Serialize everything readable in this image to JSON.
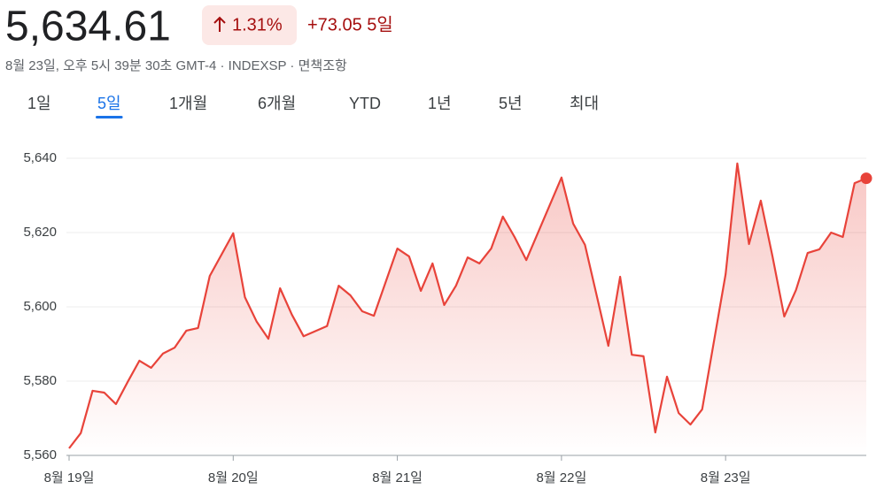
{
  "header": {
    "price": "5,634.61",
    "change_percent": "1.31%",
    "change": "+73.05 5일",
    "subtitle": "8월 23일, 오후 5시 39분 30초 GMT-4 · INDEXSP · 면책조항"
  },
  "tabs": [
    "1일",
    "5일",
    "1개월",
    "6개월",
    "YTD",
    "1년",
    "5년",
    "최대"
  ],
  "selected_tab": 1,
  "chart_data": {
    "type": "area",
    "color": "#e8433a",
    "grid": true,
    "x": [
      0,
      1,
      2,
      3,
      4,
      5,
      6,
      7,
      8,
      9,
      10,
      11,
      12,
      14,
      15,
      16,
      17,
      18,
      19,
      20,
      22,
      23,
      24,
      25,
      26,
      28,
      29,
      30,
      31,
      32,
      33,
      34,
      35,
      36,
      37,
      38,
      39,
      42,
      43,
      44,
      46,
      47,
      48,
      49,
      50,
      51,
      52,
      53,
      54,
      56,
      57,
      58,
      59,
      60,
      61,
      62,
      63,
      64,
      65,
      66,
      67,
      68
    ],
    "values": [
      5561.9,
      5566,
      5577.4,
      5576.9,
      5573.8,
      5579.8,
      5585.5,
      5583.6,
      5587.4,
      5589,
      5593.6,
      5594.3,
      5608.3,
      5619.8,
      5602.6,
      5596,
      5591.4,
      5605,
      5597.9,
      5592.1,
      5594.8,
      5605.7,
      5603.1,
      5598.8,
      5597.6,
      5615.7,
      5613.6,
      5604.3,
      5611.7,
      5600.5,
      5605.7,
      5613.3,
      5611.7,
      5615.7,
      5624.3,
      5618.8,
      5612.6,
      5634.8,
      5622.4,
      5616.7,
      5589.5,
      5608.1,
      5587.1,
      5586.7,
      5566.2,
      5581.2,
      5571.4,
      5568.3,
      5572.4,
      5608.8,
      5638.6,
      5616.9,
      5628.6,
      5613.6,
      5597.4,
      5604.5,
      5614.5,
      5615.5,
      5620,
      5618.8,
      5633.3,
      5634.61
    ],
    "xlim": [
      0,
      68
    ],
    "xticks": [
      {
        "value": 0,
        "label": "8월 19일"
      },
      {
        "value": 14,
        "label": "8월 20일"
      },
      {
        "value": 28,
        "label": "8월 21일"
      },
      {
        "value": 42,
        "label": "8월 22일"
      },
      {
        "value": 56,
        "label": "8월 23일"
      }
    ],
    "ylim": [
      5560,
      5646
    ],
    "yticks": [
      {
        "value": 5560,
        "label": "5,560"
      },
      {
        "value": 5580,
        "label": "5,580"
      },
      {
        "value": 5600,
        "label": "5,600"
      },
      {
        "value": 5620,
        "label": "5,620"
      },
      {
        "value": 5640,
        "label": "5,640"
      }
    ]
  }
}
